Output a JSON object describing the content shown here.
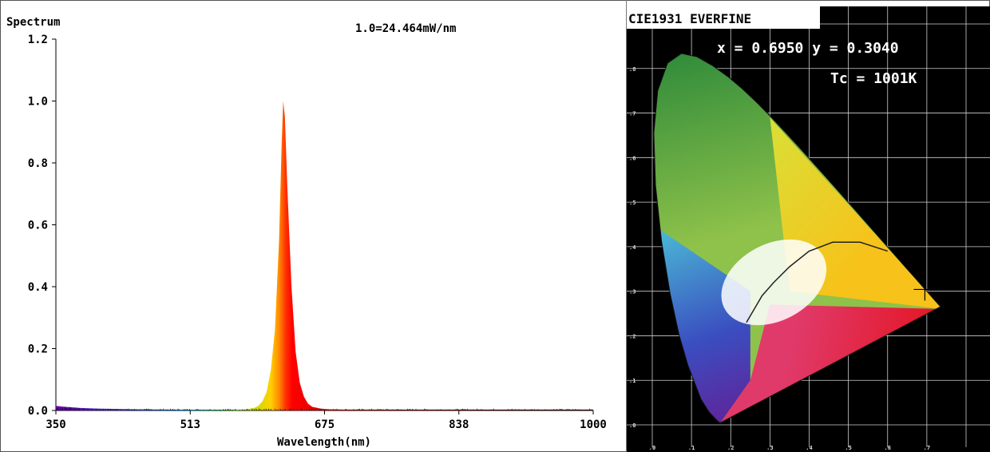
{
  "chart_data": [
    {
      "type": "area",
      "title": "Spectrum",
      "annotation": "1.0=24.464mW/nm",
      "xlabel": "Wavelength(nm)",
      "ylabel": "",
      "xlim": [
        350,
        1000
      ],
      "ylim": [
        0,
        1.2
      ],
      "x_ticks": [
        "350",
        "513",
        "675",
        "838",
        "1000"
      ],
      "y_ticks": [
        "0.0",
        "0.2",
        "0.4",
        "0.6",
        "0.8",
        "1.0",
        "1.2"
      ],
      "grid": false,
      "legend": "none",
      "peak_wavelength": 625,
      "peak_value": 1.0,
      "x": [
        350,
        360,
        380,
        400,
        450,
        500,
        550,
        580,
        590,
        595,
        600,
        605,
        610,
        615,
        620,
        623,
        625,
        627,
        630,
        635,
        640,
        645,
        650,
        655,
        660,
        670,
        680,
        700,
        750,
        800,
        900,
        1000
      ],
      "values": [
        0.015,
        0.012,
        0.008,
        0.006,
        0.004,
        0.003,
        0.003,
        0.004,
        0.008,
        0.015,
        0.03,
        0.06,
        0.13,
        0.26,
        0.55,
        0.85,
        1.0,
        0.95,
        0.72,
        0.4,
        0.19,
        0.09,
        0.045,
        0.022,
        0.012,
        0.006,
        0.004,
        0.003,
        0.003,
        0.003,
        0.003,
        0.003
      ]
    },
    {
      "type": "diagram",
      "title": "CIE1931 EVERFINE",
      "coordinates_label": "x = 0.6950 y = 0.3040",
      "cct_label": "Tc = 1001K",
      "x": 0.695,
      "y": 0.304,
      "cct_k": 1001,
      "xlim": [
        0,
        0.8
      ],
      "ylim": [
        0,
        0.9
      ],
      "x_ticks": [
        ".0",
        ".1",
        ".2",
        ".3",
        ".4",
        ".5",
        ".6",
        ".7"
      ],
      "y_ticks": [
        ".0",
        ".1",
        ".2",
        ".3",
        ".4",
        ".5",
        ".6",
        ".7",
        ".8"
      ],
      "background_color": "#000000"
    }
  ]
}
